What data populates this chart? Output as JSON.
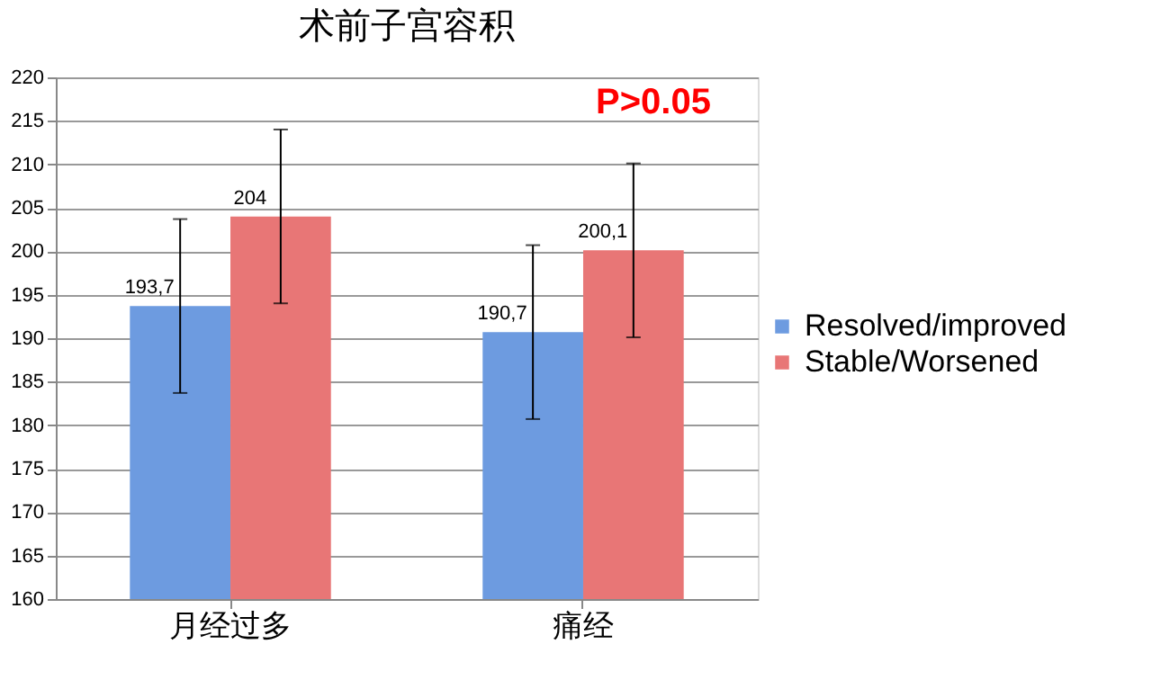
{
  "chart_data": {
    "type": "bar",
    "title": "术前子宫容积",
    "categories": [
      "月经过多",
      "痛经"
    ],
    "series": [
      {
        "name": "Resolved/improved",
        "color": "#6d9be0",
        "values": [
          193.7,
          190.7
        ],
        "errors": [
          10,
          10
        ],
        "value_labels": [
          "193,7",
          "190,7"
        ]
      },
      {
        "name": "Stable/Worsened",
        "color": "#e87676",
        "values": [
          204,
          200.1
        ],
        "errors": [
          10,
          10
        ],
        "value_labels": [
          "204",
          "200,1"
        ]
      }
    ],
    "ylim": [
      160,
      220
    ],
    "yticks": [
      160,
      165,
      170,
      175,
      180,
      185,
      190,
      195,
      200,
      205,
      210,
      215,
      220
    ],
    "grid": "y",
    "legend": "right",
    "annotations": [
      "P>0.05"
    ]
  }
}
